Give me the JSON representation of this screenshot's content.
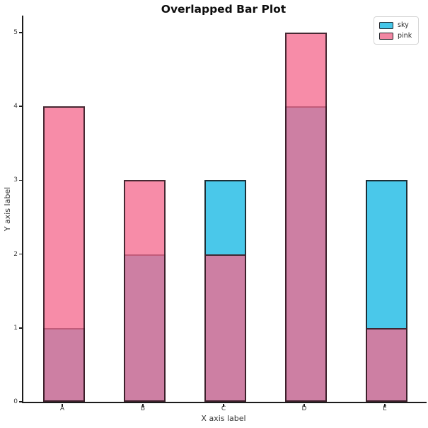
{
  "chart_data": {
    "type": "bar",
    "variant": "overlapped",
    "title": "Overlapped Bar Plot",
    "xlabel": "X axis label",
    "ylabel": "Y axis label",
    "categories": [
      "A",
      "B",
      "C",
      "D",
      "E"
    ],
    "series": [
      {
        "name": "sky",
        "values": [
          1,
          2,
          3,
          4,
          3
        ],
        "color": "#4AC8EA",
        "alpha": 1.0,
        "edge_color": "#1a1a1a"
      },
      {
        "name": "pink",
        "values": [
          4,
          3,
          2,
          5,
          1
        ],
        "color": "#F4698E",
        "alpha": 0.77,
        "edge_color": "#1a1a1a"
      }
    ],
    "overlap_blend_color": "#CD84A4",
    "pink_on_white_color": "#F78CA8",
    "y_ticks": [
      "0",
      "1",
      "2",
      "3",
      "4",
      "5"
    ],
    "ylim": [
      0,
      5.23
    ],
    "bar_width_ratio": 0.52,
    "grid": false,
    "background_color": "#ffffff",
    "spine_color": "#1c1c1c",
    "tick_label_color": "#3a3a3a",
    "legend": {
      "position": "upper-right",
      "entries": [
        {
          "label": "sky",
          "swatch_color": "#45C6E8"
        },
        {
          "label": "pink",
          "swatch_color": "#F287A3"
        }
      ]
    }
  }
}
